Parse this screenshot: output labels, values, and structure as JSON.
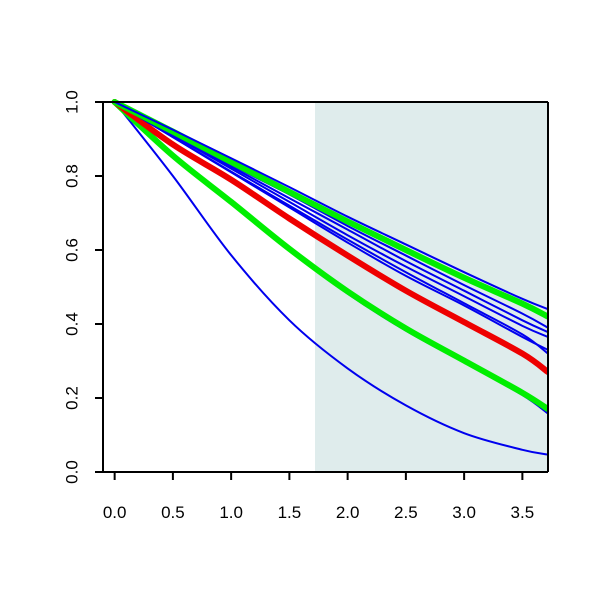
{
  "chart_data": {
    "type": "line",
    "title": "",
    "xlabel": "",
    "ylabel": "",
    "xlim": [
      -0.1,
      3.72
    ],
    "ylim": [
      0.0,
      1.0
    ],
    "x_ticks": [
      "0.0",
      "0.5",
      "1.0",
      "1.5",
      "2.0",
      "2.5",
      "3.0",
      "3.5"
    ],
    "x_tick_values": [
      0.0,
      0.5,
      1.0,
      1.5,
      2.0,
      2.5,
      3.0,
      3.5
    ],
    "y_ticks": [
      "0.0",
      "0.2",
      "0.4",
      "0.6",
      "0.8",
      "1.0"
    ],
    "y_tick_values": [
      0.0,
      0.2,
      0.4,
      0.6,
      0.8,
      1.0
    ],
    "shaded_region": {
      "x_from": 1.72,
      "x_to": 3.72,
      "color": "#dfecec"
    },
    "grid": false,
    "colors": {
      "blue": "#0000ee",
      "green": "#00ee00",
      "red": "#ee0000",
      "shade": "#dfecec"
    },
    "series": [
      {
        "color": "#0000ee",
        "width": "thin",
        "x": [
          0,
          0.5,
          1.0,
          1.5,
          2.0,
          2.5,
          3.0,
          3.5,
          3.72
        ],
        "y": [
          1.0,
          0.8,
          0.586,
          0.41,
          0.28,
          0.18,
          0.105,
          0.06,
          0.047
        ]
      },
      {
        "color": "#0000ee",
        "width": "thin",
        "x": [
          0,
          0.5,
          1.0,
          1.5,
          2.0,
          2.5,
          3.0,
          3.5,
          3.72
        ],
        "y": [
          1.0,
          0.85,
          0.725,
          0.598,
          0.482,
          0.382,
          0.296,
          0.208,
          0.158
        ]
      },
      {
        "color": "#0000ee",
        "width": "thin",
        "x": [
          0,
          0.5,
          1.0,
          1.5,
          2.0,
          2.5,
          3.0,
          3.5,
          3.72
        ],
        "y": [
          1.0,
          0.86,
          0.735,
          0.608,
          0.492,
          0.392,
          0.306,
          0.218,
          0.168
        ]
      },
      {
        "color": "#00ee00",
        "width": "thick",
        "x": [
          0,
          0.5,
          1.0,
          1.5,
          2.0,
          2.5,
          3.0,
          3.5,
          3.72
        ],
        "y": [
          1.0,
          0.855,
          0.73,
          0.603,
          0.488,
          0.388,
          0.301,
          0.214,
          0.17
        ]
      },
      {
        "color": "#ee0000",
        "width": "thick",
        "x": [
          0,
          0.5,
          1.0,
          1.5,
          2.0,
          2.5,
          3.0,
          3.5,
          3.72
        ],
        "y": [
          1.0,
          0.885,
          0.79,
          0.685,
          0.585,
          0.49,
          0.405,
          0.32,
          0.27
        ]
      },
      {
        "color": "#0000ee",
        "width": "thin",
        "x": [
          0,
          0.5,
          1.0,
          1.5,
          2.0,
          2.5,
          3.0,
          3.5,
          3.72
        ],
        "y": [
          1.0,
          0.905,
          0.81,
          0.715,
          0.62,
          0.53,
          0.45,
          0.365,
          0.33
        ]
      },
      {
        "color": "#0000ee",
        "width": "thin",
        "x": [
          0,
          0.5,
          1.0,
          1.5,
          2.0,
          2.5,
          3.0,
          3.5,
          3.72
        ],
        "y": [
          1.0,
          0.905,
          0.812,
          0.72,
          0.628,
          0.54,
          0.456,
          0.372,
          0.32
        ]
      },
      {
        "color": "#0000ee",
        "width": "thin",
        "x": [
          0,
          0.5,
          1.0,
          1.5,
          2.0,
          2.5,
          3.0,
          3.5,
          3.72
        ],
        "y": [
          1.0,
          0.91,
          0.82,
          0.73,
          0.64,
          0.555,
          0.475,
          0.395,
          0.365
        ]
      },
      {
        "color": "#0000ee",
        "width": "thin",
        "x": [
          0,
          0.5,
          1.0,
          1.5,
          2.0,
          2.5,
          3.0,
          3.5,
          3.72
        ],
        "y": [
          1.0,
          0.912,
          0.825,
          0.74,
          0.655,
          0.57,
          0.49,
          0.41,
          0.378
        ]
      },
      {
        "color": "#0000ee",
        "width": "thin",
        "x": [
          0,
          0.5,
          1.0,
          1.5,
          2.0,
          2.5,
          3.0,
          3.5,
          3.72
        ],
        "y": [
          1.0,
          0.915,
          0.83,
          0.75,
          0.665,
          0.585,
          0.505,
          0.428,
          0.39
        ]
      },
      {
        "color": "#00ee00",
        "width": "thick",
        "x": [
          0,
          0.5,
          1.0,
          1.5,
          2.0,
          2.5,
          3.0,
          3.5,
          3.72
        ],
        "y": [
          1.0,
          0.92,
          0.838,
          0.757,
          0.677,
          0.6,
          0.525,
          0.455,
          0.42
        ]
      },
      {
        "color": "#0000ee",
        "width": "thin",
        "x": [
          0,
          0.5,
          1.0,
          1.5,
          2.0,
          2.5,
          3.0,
          3.5,
          3.72
        ],
        "y": [
          1.0,
          0.925,
          0.848,
          0.77,
          0.69,
          0.615,
          0.54,
          0.468,
          0.44
        ]
      }
    ]
  }
}
